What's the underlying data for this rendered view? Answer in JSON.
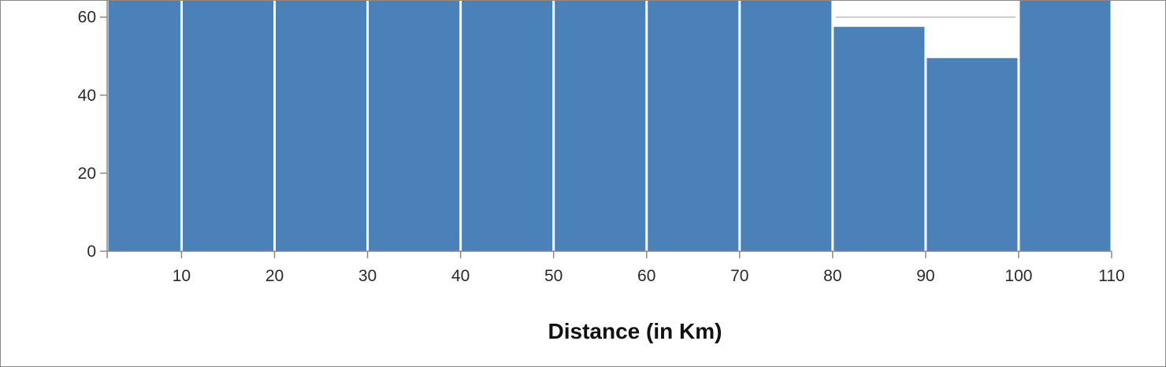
{
  "chart_data": {
    "type": "bar",
    "subtype": "histogram",
    "xlabel": "Distance (in Km)",
    "ylabel": "",
    "bins": [
      {
        "x0": 2,
        "x1": 10,
        "value": 75
      },
      {
        "x0": 10,
        "x1": 20,
        "value": 75
      },
      {
        "x0": 20,
        "x1": 30,
        "value": 75
      },
      {
        "x0": 30,
        "x1": 40,
        "value": 75
      },
      {
        "x0": 40,
        "x1": 50,
        "value": 75
      },
      {
        "x0": 50,
        "x1": 60,
        "value": 75
      },
      {
        "x0": 60,
        "x1": 70,
        "value": 75
      },
      {
        "x0": 70,
        "x1": 80,
        "value": 75
      },
      {
        "x0": 80,
        "x1": 90,
        "value": 57.5
      },
      {
        "x0": 90,
        "x1": 100,
        "value": 49.5
      },
      {
        "x0": 100,
        "x1": 110,
        "value": 75
      }
    ],
    "xlim": [
      2,
      110
    ],
    "ylim": [
      0,
      66
    ],
    "xticks": [
      10,
      20,
      30,
      40,
      50,
      60,
      70,
      80,
      90,
      100,
      110
    ],
    "yticks": [
      0,
      20,
      40,
      60
    ],
    "reference_line": {
      "x0": 80,
      "x1": 100,
      "y": 60,
      "color": "#cccccc"
    },
    "bar_color": "#4a81b8",
    "grid": false
  }
}
